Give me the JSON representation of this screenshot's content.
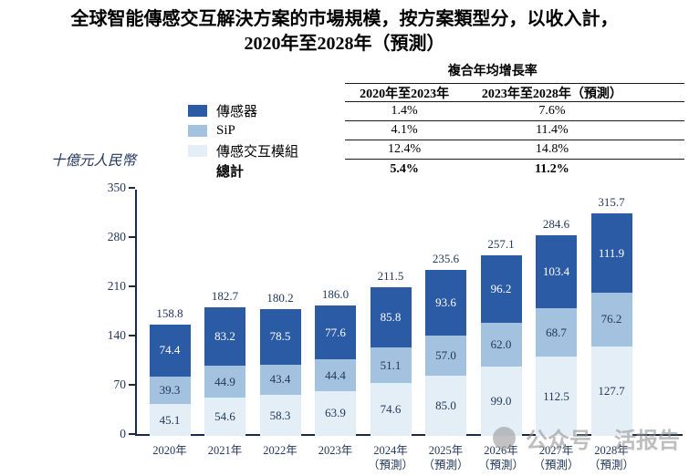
{
  "title": {
    "line1": "全球智能傳感交互解決方案的市場規模，按方案類型分，以收入計，",
    "line2": "2020年至2028年（預測）"
  },
  "legend": {
    "items": [
      {
        "label": "傳感器",
        "color": "#2c5ba6"
      },
      {
        "label": "SiP",
        "color": "#a2c2e0"
      },
      {
        "label": "傳感交互模組",
        "color": "#e4eef7"
      }
    ],
    "total_label": "總計"
  },
  "cagr_table": {
    "title": "複合年均增長率",
    "columns": [
      "2020年至2023年",
      "2023年至2028年（預測）"
    ],
    "rows": [
      [
        "1.4%",
        "7.6%"
      ],
      [
        "4.1%",
        "11.4%"
      ],
      [
        "12.4%",
        "14.8%"
      ]
    ],
    "total_row": [
      "5.4%",
      "11.2%"
    ]
  },
  "y_axis_label": "十億元人民幣",
  "watermark": {
    "icon": "wechat-logo-circle",
    "text_prefix": "公众号",
    "text_suffix": "活报告"
  },
  "chart_data": {
    "type": "bar",
    "stacked": true,
    "title": "全球智能傳感交互解決方案的市場規模，按方案類型分，以收入計，2020年至2028年（預測）",
    "ylabel": "十億元人民幣",
    "ylim": [
      0,
      350
    ],
    "y_ticks": [
      0,
      70,
      140,
      210,
      280,
      350
    ],
    "grid": false,
    "legend_position": "upper-left",
    "categories": [
      "2020年",
      "2021年",
      "2022年",
      "2023年",
      "2024年（預測）",
      "2025年（預測）",
      "2026年（預測）",
      "2027年（預測）",
      "2028年（預測）"
    ],
    "series": [
      {
        "name": "傳感交互模組",
        "color": "#e4eef7",
        "label_color": "#22375c",
        "values": [
          45.1,
          54.6,
          58.3,
          63.9,
          74.6,
          85.0,
          99.0,
          112.5,
          127.7
        ]
      },
      {
        "name": "SiP",
        "color": "#a2c2e0",
        "label_color": "#22375c",
        "values": [
          39.3,
          44.9,
          43.4,
          44.4,
          51.1,
          57.0,
          62.0,
          68.7,
          76.2
        ]
      },
      {
        "name": "傳感器",
        "color": "#2c5ba6",
        "label_color": "#ffffff",
        "values": [
          74.4,
          83.2,
          78.5,
          77.6,
          85.8,
          93.6,
          96.2,
          103.4,
          111.9
        ]
      }
    ],
    "totals": [
      158.8,
      182.7,
      180.2,
      186.0,
      211.5,
      235.6,
      257.1,
      284.6,
      315.7
    ]
  }
}
